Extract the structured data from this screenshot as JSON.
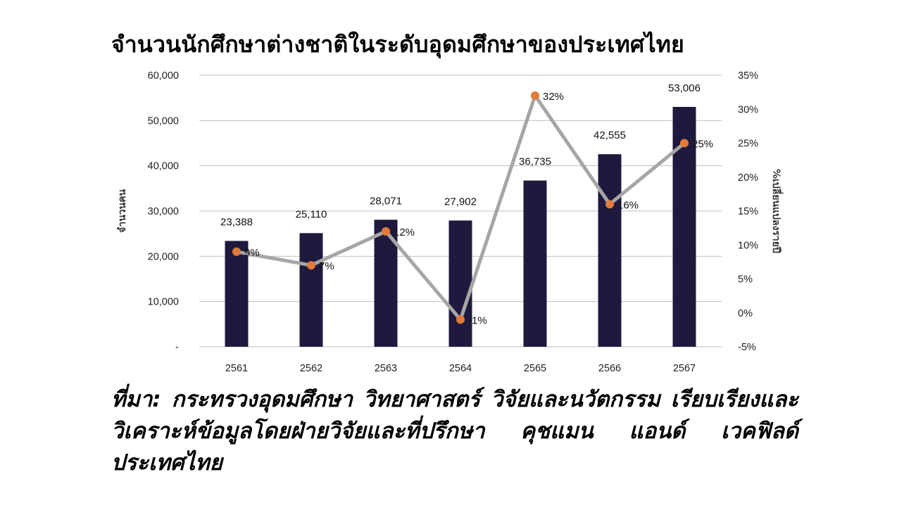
{
  "title": "จำนวนนักศึกษาต่างชาติในระดับอุดมศึกษาของประเทศไทย",
  "source": "ที่มา: กระทรวงอุดมศึกษา วิทยาศาสตร์ วิจัยและนวัตกรรม เรียบเรียงและวิเคราะห์ข้อมูลโดยฝ่ายวิจัยและที่ปรึกษา คุชแมน แอนด์ เวคฟิลด์ ประเทศไทย",
  "chart_data": {
    "type": "bar",
    "categories": [
      "2561",
      "2562",
      "2563",
      "2564",
      "2565",
      "2566",
      "2567"
    ],
    "series": [
      {
        "values": [
          23388,
          25110,
          28071,
          27902,
          36735,
          42555,
          53006
        ],
        "value_labels": [
          "23,388",
          "25,110",
          "28,071",
          "27,902",
          "36,735",
          "42,555",
          "53,006"
        ],
        "type": "bar",
        "axis": "left",
        "color": "#1f1a3d"
      },
      {
        "values": [
          9,
          7,
          12,
          -1,
          32,
          16,
          25
        ],
        "value_labels": [
          "9%",
          "7%",
          "12%",
          "-1%",
          "32%",
          "16%",
          "25%"
        ],
        "type": "line",
        "axis": "right",
        "line_color": "#a6a6a6",
        "marker_color": "#e07b39"
      }
    ],
    "ylabel": "จำนวนคน",
    "y2label": "%เปลี่ยนแปลงรายปี",
    "ylim": [
      0,
      60000
    ],
    "y2lim": [
      -5,
      35
    ],
    "yticks": [
      "-",
      "10,000",
      "20,000",
      "30,000",
      "40,000",
      "50,000",
      "60,000"
    ],
    "y2ticks": [
      "-5%",
      "0%",
      "5%",
      "10%",
      "15%",
      "20%",
      "25%",
      "30%",
      "35%"
    ],
    "grid": true,
    "legend": "none"
  }
}
